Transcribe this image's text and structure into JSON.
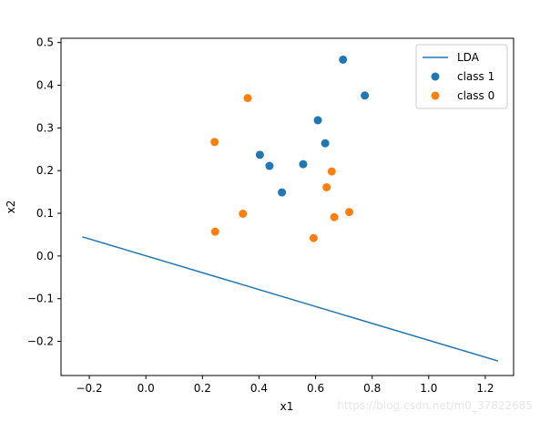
{
  "chart_data": {
    "type": "scatter",
    "xlabel": "x1",
    "ylabel": "x2",
    "xlim": [
      -0.3,
      1.3
    ],
    "ylim": [
      -0.28,
      0.51
    ],
    "xticks": [
      -0.2,
      0.0,
      0.2,
      0.4,
      0.6,
      0.8,
      1.0,
      1.2
    ],
    "xtick_labels": [
      "−0.2",
      "0.0",
      "0.2",
      "0.4",
      "0.6",
      "0.8",
      "1.0",
      "1.2"
    ],
    "yticks": [
      -0.2,
      -0.1,
      0.0,
      0.1,
      0.2,
      0.3,
      0.4,
      0.5
    ],
    "ytick_labels": [
      "−0.2",
      "−0.1",
      "0.0",
      "0.1",
      "0.2",
      "0.3",
      "0.4",
      "0.5"
    ],
    "grid": false,
    "legend_position": "top-right",
    "series": [
      {
        "name": "LDA",
        "kind": "line",
        "color": "#1f77b4",
        "points": [
          [
            -0.225,
            0.045
          ],
          [
            1.245,
            -0.246
          ]
        ]
      },
      {
        "name": "class 1",
        "kind": "scatter",
        "color": "#1f77b4",
        "points": [
          [
            0.697,
            0.46
          ],
          [
            0.774,
            0.376
          ],
          [
            0.608,
            0.318
          ],
          [
            0.634,
            0.264
          ],
          [
            0.403,
            0.237
          ],
          [
            0.437,
            0.211
          ],
          [
            0.556,
            0.215
          ],
          [
            0.481,
            0.149
          ]
        ]
      },
      {
        "name": "class 0",
        "kind": "scatter",
        "color": "#ff7f0e",
        "points": [
          [
            0.36,
            0.37
          ],
          [
            0.243,
            0.267
          ],
          [
            0.657,
            0.198
          ],
          [
            0.639,
            0.161
          ],
          [
            0.719,
            0.103
          ],
          [
            0.343,
            0.099
          ],
          [
            0.666,
            0.091
          ],
          [
            0.245,
            0.057
          ],
          [
            0.593,
            0.042
          ]
        ]
      }
    ]
  },
  "watermark": "https://blog.csdn.net/m0_37822685"
}
